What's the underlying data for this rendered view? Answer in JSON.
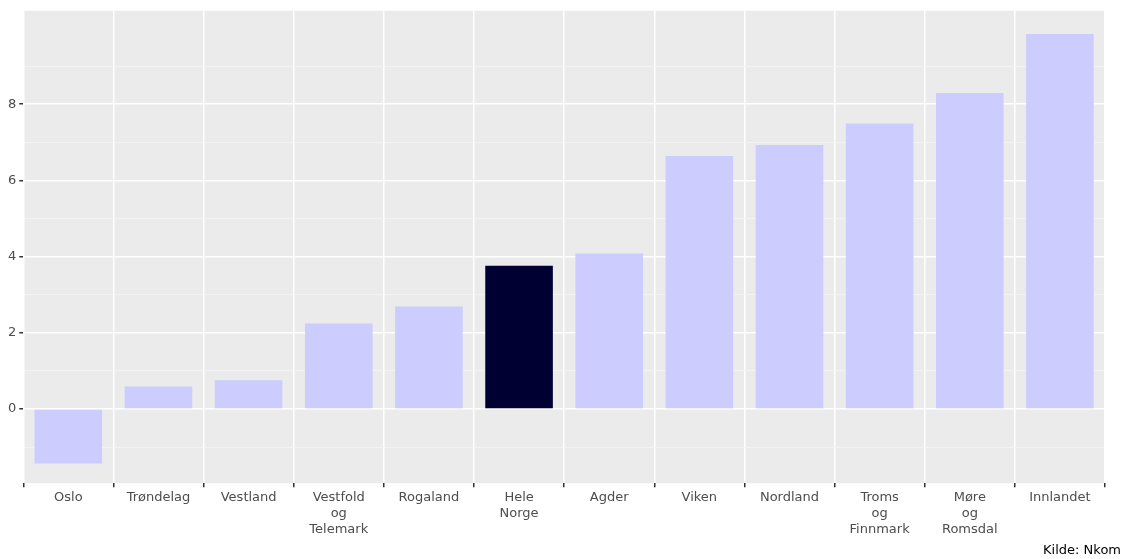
{
  "chart_data": {
    "type": "bar",
    "categories": [
      "Oslo",
      "Trøndelag",
      "Vestland",
      "Vestfold og Telemark",
      "Rogaland",
      "Hele Norge",
      "Agder",
      "Viken",
      "Nordland",
      "Troms og Finnmark",
      "Møre og Romsdal",
      "Innlandet"
    ],
    "values": [
      -1.43,
      0.59,
      0.75,
      2.24,
      2.69,
      3.76,
      4.08,
      6.64,
      6.93,
      7.49,
      8.29,
      9.84
    ],
    "colors": [
      "#ccccff",
      "#ccccff",
      "#ccccff",
      "#ccccff",
      "#ccccff",
      "#000033",
      "#ccccff",
      "#ccccff",
      "#ccccff",
      "#ccccff",
      "#ccccff",
      "#ccccff"
    ],
    "ylim": [
      -1.95,
      10.45
    ],
    "yticks": [
      {
        "value": -1,
        "label": null
      },
      0,
      {
        "value": 1,
        "label": null
      },
      2,
      {
        "value": 3,
        "label": null
      },
      4,
      {
        "value": 5,
        "label": null
      },
      6,
      {
        "value": 7,
        "label": null
      },
      8,
      {
        "value": 9,
        "label": null
      }
    ],
    "grid": true,
    "annotations": [
      "Kilde: Nkom"
    ]
  }
}
